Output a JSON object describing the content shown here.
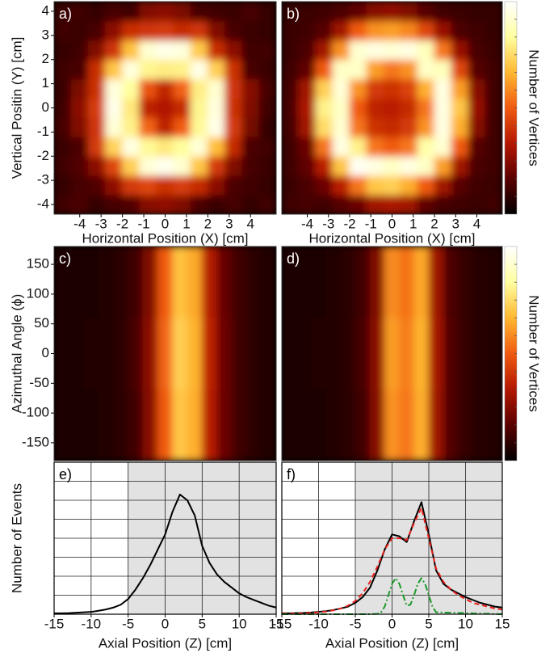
{
  "chart_data": [
    {
      "type": "heatmap",
      "label": "a)",
      "xlabel": "Horizontal Position (X) [cm]",
      "ylabel": "Vertical Positin (Y) [cm]",
      "xlim": [
        -5.2,
        5.2
      ],
      "ylim": [
        -4.4,
        4.4
      ],
      "xticks": [
        -4,
        -3,
        -2,
        -1,
        0,
        1,
        2,
        3,
        4
      ],
      "yticks": [
        -4,
        -3,
        -2,
        -1,
        0,
        1,
        2,
        3,
        4
      ],
      "xbins": [
        -5.2,
        -4.4,
        -3.6,
        -2.8,
        -2,
        -1.2,
        -0.4,
        0.4,
        1.2,
        2,
        2.8,
        3.6,
        4.4,
        5.2
      ],
      "ybins": [
        -4.4,
        -3.6,
        -2.8,
        -2,
        -1.2,
        -0.4,
        0.4,
        1.2,
        2,
        2.8,
        3.6,
        4.4
      ],
      "zlim": [
        0,
        1
      ],
      "colormap": [
        "#000000",
        "#5a0000",
        "#b31800",
        "#f05a10",
        "#ffb830",
        "#ffffa0",
        "#ffffff"
      ],
      "z": [
        [
          0.12,
          0.14,
          0.1,
          0.13,
          0.15,
          0.25,
          0.27,
          0.24,
          0.14,
          0.11,
          0.13,
          0.1,
          0.12
        ],
        [
          0.1,
          0.13,
          0.15,
          0.27,
          0.42,
          0.45,
          0.4,
          0.43,
          0.38,
          0.26,
          0.14,
          0.12,
          0.1
        ],
        [
          0.12,
          0.15,
          0.26,
          0.45,
          0.72,
          0.93,
          0.97,
          0.92,
          0.7,
          0.42,
          0.24,
          0.13,
          0.11
        ],
        [
          0.11,
          0.14,
          0.42,
          0.73,
          0.95,
          0.82,
          0.78,
          0.83,
          0.93,
          0.68,
          0.38,
          0.14,
          0.12
        ],
        [
          0.13,
          0.24,
          0.41,
          0.93,
          0.8,
          0.52,
          0.36,
          0.5,
          0.82,
          0.96,
          0.42,
          0.22,
          0.1
        ],
        [
          0.12,
          0.26,
          0.43,
          0.96,
          0.78,
          0.36,
          0.33,
          0.38,
          0.81,
          0.94,
          0.4,
          0.24,
          0.12
        ],
        [
          0.11,
          0.23,
          0.4,
          0.94,
          0.83,
          0.48,
          0.37,
          0.51,
          0.79,
          0.92,
          0.41,
          0.25,
          0.13
        ],
        [
          0.12,
          0.13,
          0.39,
          0.7,
          0.94,
          0.81,
          0.79,
          0.8,
          0.96,
          0.72,
          0.4,
          0.13,
          0.11
        ],
        [
          0.1,
          0.12,
          0.24,
          0.41,
          0.69,
          0.92,
          0.96,
          0.94,
          0.71,
          0.39,
          0.26,
          0.12,
          0.12
        ],
        [
          0.12,
          0.11,
          0.13,
          0.26,
          0.39,
          0.41,
          0.42,
          0.38,
          0.41,
          0.24,
          0.13,
          0.11,
          0.1
        ],
        [
          0.11,
          0.12,
          0.1,
          0.13,
          0.12,
          0.24,
          0.26,
          0.23,
          0.13,
          0.12,
          0.11,
          0.13,
          0.1
        ]
      ]
    },
    {
      "type": "heatmap",
      "label": "b)",
      "xlabel": "Horizontal Position (X) [cm]",
      "colorbar_label": "Number of Vertices",
      "xlim": [
        -5.2,
        5.2
      ],
      "ylim": [
        -4.4,
        4.4
      ],
      "xticks": [
        -4,
        -3,
        -2,
        -1,
        0,
        1,
        2,
        3,
        4
      ],
      "xbins": [
        -5.2,
        -4.4,
        -3.6,
        -2.8,
        -2,
        -1.2,
        -0.4,
        0.4,
        1.2,
        2,
        2.8,
        3.6,
        4.4,
        5.2
      ],
      "ybins": [
        -4.4,
        -3.6,
        -2.8,
        -2,
        -1.2,
        -0.4,
        0.4,
        1.2,
        2,
        2.8,
        3.6,
        4.4
      ],
      "zlim": [
        0,
        1
      ],
      "colormap": [
        "#000000",
        "#5a0000",
        "#b31800",
        "#f05a10",
        "#ffb830",
        "#ffffa0",
        "#ffffff"
      ],
      "z": [
        [
          0.12,
          0.13,
          0.12,
          0.16,
          0.2,
          0.3,
          0.32,
          0.3,
          0.18,
          0.13,
          0.12,
          0.11,
          0.12
        ],
        [
          0.11,
          0.14,
          0.2,
          0.35,
          0.55,
          0.7,
          0.72,
          0.65,
          0.5,
          0.3,
          0.16,
          0.12,
          0.11
        ],
        [
          0.12,
          0.18,
          0.35,
          0.7,
          0.98,
          0.95,
          0.9,
          0.95,
          0.9,
          0.62,
          0.3,
          0.14,
          0.12
        ],
        [
          0.12,
          0.2,
          0.55,
          0.95,
          0.8,
          0.55,
          0.5,
          0.55,
          0.85,
          0.92,
          0.5,
          0.16,
          0.12
        ],
        [
          0.13,
          0.3,
          0.75,
          0.92,
          0.55,
          0.4,
          0.38,
          0.42,
          0.6,
          0.95,
          0.65,
          0.25,
          0.12
        ],
        [
          0.14,
          0.32,
          0.8,
          0.9,
          0.5,
          0.36,
          0.35,
          0.38,
          0.55,
          0.95,
          0.7,
          0.28,
          0.12
        ],
        [
          0.13,
          0.3,
          0.72,
          0.93,
          0.6,
          0.42,
          0.4,
          0.44,
          0.65,
          0.95,
          0.62,
          0.25,
          0.12
        ],
        [
          0.12,
          0.18,
          0.5,
          0.9,
          0.9,
          0.62,
          0.55,
          0.6,
          0.9,
          0.88,
          0.45,
          0.16,
          0.12
        ],
        [
          0.11,
          0.14,
          0.3,
          0.6,
          0.92,
          0.95,
          0.93,
          0.95,
          0.88,
          0.55,
          0.28,
          0.13,
          0.11
        ],
        [
          0.11,
          0.12,
          0.16,
          0.3,
          0.5,
          0.6,
          0.62,
          0.58,
          0.45,
          0.28,
          0.14,
          0.12,
          0.1
        ],
        [
          0.1,
          0.11,
          0.12,
          0.14,
          0.18,
          0.25,
          0.27,
          0.24,
          0.16,
          0.12,
          0.11,
          0.1,
          0.1
        ]
      ]
    },
    {
      "type": "heatmap",
      "label": "c)",
      "ylabel": "Azimuthal Angle (ϕ)",
      "xlim": [
        -15,
        15
      ],
      "ylim": [
        -180,
        180
      ],
      "yticks": [
        -150,
        -100,
        -50,
        0,
        50,
        100,
        150
      ],
      "xbins": [
        -15,
        -13,
        -11,
        -9,
        -7,
        -5,
        -3,
        -1,
        1,
        3,
        5,
        7,
        9,
        11,
        13,
        15
      ],
      "ybins": [
        -180,
        -60,
        60,
        180
      ],
      "zlim": [
        0,
        1
      ],
      "colormap": [
        "#000000",
        "#5a0000",
        "#b31800",
        "#f05a10",
        "#ffb830",
        "#ffffa0",
        "#ffffff"
      ],
      "z": [
        [
          0.05,
          0.05,
          0.05,
          0.06,
          0.08,
          0.12,
          0.25,
          0.5,
          0.7,
          0.65,
          0.35,
          0.2,
          0.12,
          0.08,
          0.06
        ],
        [
          0.05,
          0.05,
          0.06,
          0.06,
          0.08,
          0.13,
          0.26,
          0.52,
          0.72,
          0.66,
          0.36,
          0.2,
          0.12,
          0.08,
          0.06
        ],
        [
          0.05,
          0.05,
          0.05,
          0.06,
          0.08,
          0.12,
          0.24,
          0.5,
          0.69,
          0.64,
          0.34,
          0.19,
          0.12,
          0.08,
          0.06
        ]
      ]
    },
    {
      "type": "heatmap",
      "label": "d)",
      "colorbar_label": "Number of Vertices",
      "xlim": [
        -15,
        15
      ],
      "ylim": [
        -180,
        180
      ],
      "xbins": [
        -15,
        -13,
        -11,
        -9,
        -7,
        -5,
        -3,
        -1,
        1,
        3,
        5,
        7,
        9,
        11,
        13,
        15
      ],
      "ybins": [
        -180,
        -60,
        60,
        180
      ],
      "zlim": [
        0,
        1
      ],
      "colormap": [
        "#000000",
        "#5a0000",
        "#b31800",
        "#f05a10",
        "#ffb830",
        "#ffffa0",
        "#ffffff"
      ],
      "z": [
        [
          0.05,
          0.05,
          0.05,
          0.06,
          0.08,
          0.12,
          0.25,
          0.6,
          0.55,
          0.65,
          0.3,
          0.15,
          0.1,
          0.07,
          0.06
        ],
        [
          0.05,
          0.05,
          0.06,
          0.06,
          0.08,
          0.13,
          0.26,
          0.62,
          0.56,
          0.66,
          0.31,
          0.15,
          0.1,
          0.07,
          0.06
        ],
        [
          0.05,
          0.05,
          0.05,
          0.06,
          0.08,
          0.12,
          0.24,
          0.59,
          0.54,
          0.64,
          0.3,
          0.14,
          0.1,
          0.07,
          0.06
        ]
      ]
    },
    {
      "type": "line",
      "label": "e)",
      "xlabel": "Axial Position (Z) [cm]",
      "ylabel": "Number of Events",
      "xlim": [
        -15,
        15
      ],
      "ylim": [
        0,
        8
      ],
      "xticks": [
        -15,
        -10,
        -5,
        0,
        5,
        10,
        15
      ],
      "yticks": [
        0,
        1,
        2,
        3,
        4,
        5,
        6,
        7,
        8
      ],
      "ytick_labels": false,
      "grid": true,
      "shaded_xrange": [
        -5,
        15
      ],
      "shade_color": "#e2e2e2",
      "x": [
        -15,
        -14,
        -13,
        -12,
        -11,
        -10,
        -9,
        -8,
        -7,
        -6,
        -5,
        -4,
        -3,
        -2,
        -1,
        0,
        1,
        2,
        3,
        4,
        5,
        6,
        7,
        8,
        9,
        10,
        11,
        12,
        13,
        14,
        15
      ],
      "series": [
        {
          "color": "#000000",
          "linestyle": "solid",
          "values": [
            0.05,
            0.05,
            0.06,
            0.08,
            0.1,
            0.12,
            0.18,
            0.25,
            0.35,
            0.5,
            0.8,
            1.3,
            1.9,
            2.6,
            3.4,
            4.2,
            5.4,
            6.3,
            6.0,
            5.2,
            3.6,
            2.7,
            2.1,
            1.7,
            1.4,
            1.1,
            0.9,
            0.75,
            0.6,
            0.45,
            0.35
          ]
        }
      ]
    },
    {
      "type": "line",
      "label": "f)",
      "xlabel": "Axial Position (Z) [cm]",
      "xlim": [
        -15,
        15
      ],
      "ylim": [
        0,
        8
      ],
      "xticks": [
        -15,
        -10,
        -5,
        0,
        5,
        10,
        15
      ],
      "yticks": [
        0,
        1,
        2,
        3,
        4,
        5,
        6,
        7,
        8
      ],
      "ytick_labels": false,
      "grid": true,
      "shaded_xrange": [
        -5,
        15
      ],
      "shade_color": "#e2e2e2",
      "x": [
        -15,
        -14,
        -13,
        -12,
        -11,
        -10,
        -9,
        -8,
        -7,
        -6,
        -5,
        -4,
        -3,
        -2,
        -1,
        0,
        1,
        2,
        3,
        4,
        5,
        6,
        7,
        8,
        9,
        10,
        11,
        12,
        13,
        14,
        15
      ],
      "series": [
        {
          "color": "#000000",
          "linestyle": "solid",
          "values": [
            0.05,
            0.05,
            0.06,
            0.07,
            0.09,
            0.12,
            0.16,
            0.22,
            0.3,
            0.4,
            0.6,
            0.9,
            1.4,
            2.3,
            3.4,
            4.2,
            4.1,
            3.8,
            4.9,
            5.9,
            4.2,
            2.3,
            1.6,
            1.3,
            1.1,
            0.9,
            0.75,
            0.6,
            0.5,
            0.4,
            0.35
          ]
        },
        {
          "color": "#e8201c",
          "linestyle": "dashed",
          "values": [
            0.02,
            0.03,
            0.04,
            0.05,
            0.07,
            0.1,
            0.14,
            0.2,
            0.3,
            0.45,
            0.7,
            1.1,
            1.7,
            2.5,
            3.4,
            4.0,
            4.0,
            3.9,
            4.8,
            5.6,
            4.0,
            2.4,
            1.7,
            1.3,
            1.0,
            0.8,
            0.6,
            0.5,
            0.4,
            0.3,
            0.25
          ]
        },
        {
          "color": "#1c9a2c",
          "linestyle": "dashdot",
          "x": [
            -15,
            -3,
            -2,
            -1.5,
            -1,
            -0.5,
            0,
            0.5,
            1,
            1.5,
            2,
            2.5,
            3,
            3.5,
            4,
            4.5,
            5,
            5.5,
            6,
            15
          ],
          "values": [
            0,
            0,
            0.02,
            0.1,
            0.4,
            1.0,
            1.6,
            1.9,
            1.6,
            1.0,
            0.45,
            0.5,
            1.0,
            1.6,
            1.9,
            1.6,
            1.0,
            0.4,
            0.1,
            0
          ]
        }
      ]
    }
  ]
}
